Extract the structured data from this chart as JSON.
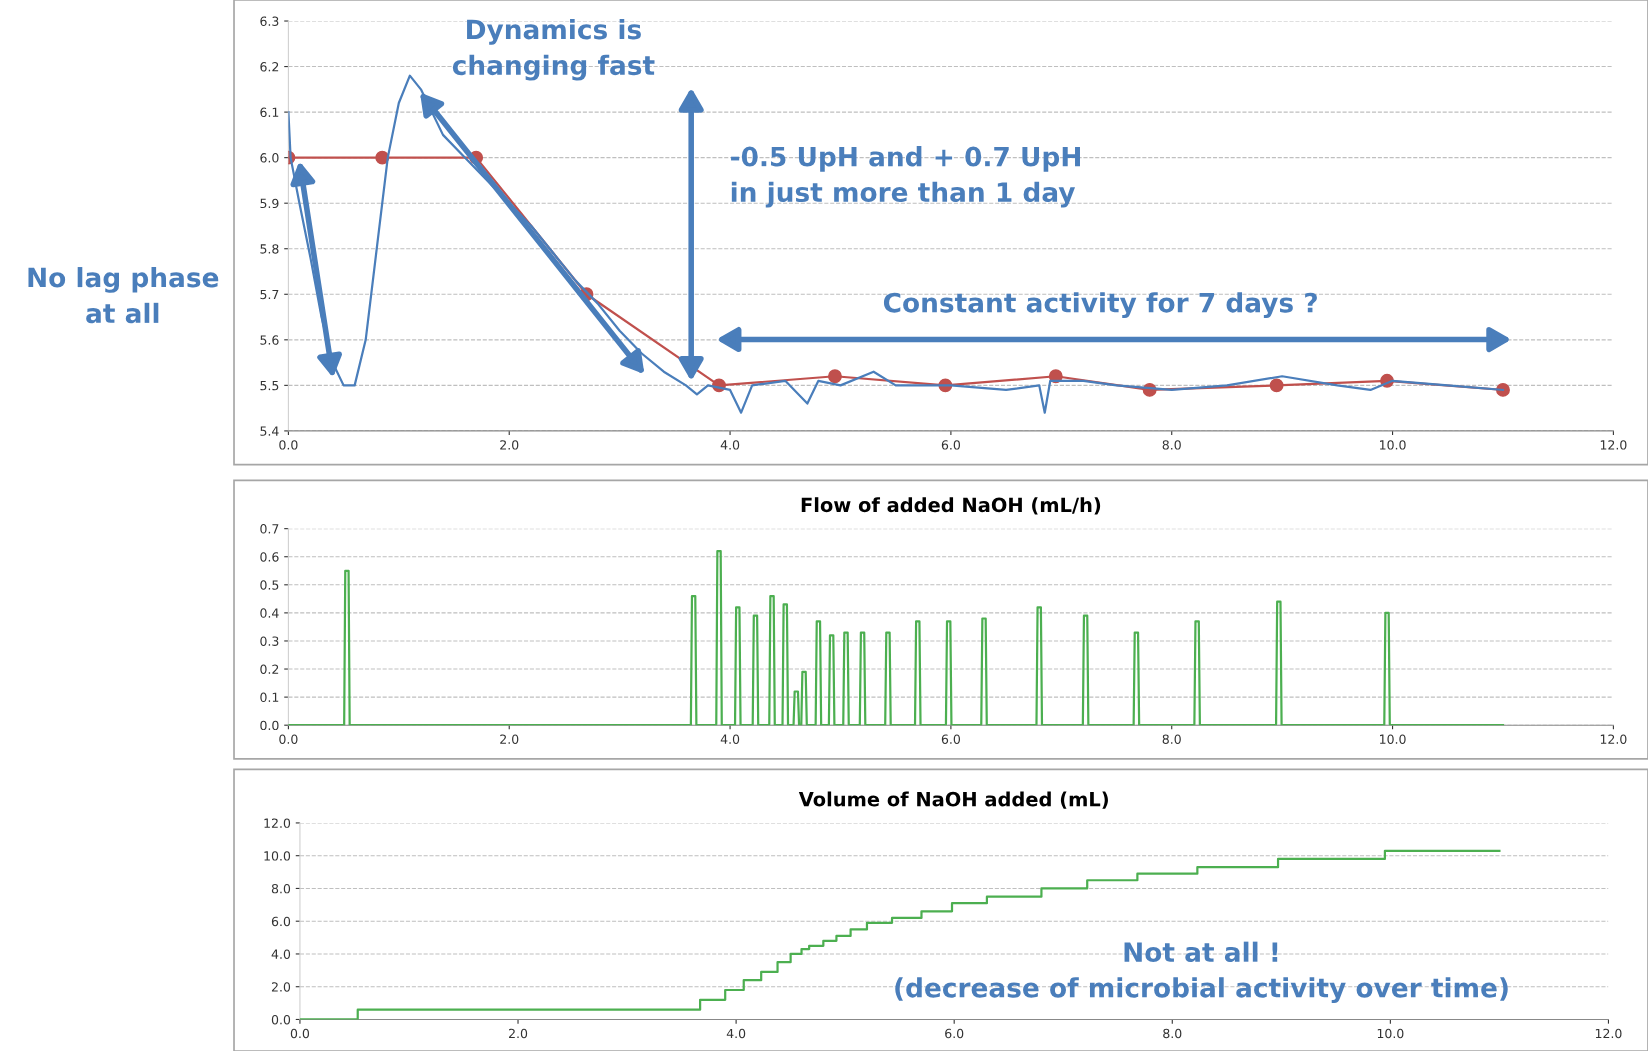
{
  "chart_data": [
    {
      "type": "line",
      "xlim": [
        0,
        12
      ],
      "ylim": [
        5.4,
        6.3
      ],
      "grid": "y",
      "xticks": [
        {
          "value": 0,
          "label": "0.0"
        },
        {
          "value": 2,
          "label": "2.0"
        },
        {
          "value": 4,
          "label": "4.0"
        },
        {
          "value": 6,
          "label": "6.0"
        },
        {
          "value": 8,
          "label": "8.0"
        },
        {
          "value": 10,
          "label": "10.0"
        },
        {
          "value": 12,
          "label": "12.0"
        }
      ],
      "yticks": [
        5.4,
        5.5,
        5.6,
        5.7,
        5.8,
        5.9,
        {
          "value": 6,
          "label": "6.0"
        },
        6.1,
        6.2,
        6.3
      ],
      "series": [
        {
          "color": "#4a7ebb",
          "marker": "none",
          "x": [
            0,
            0.02,
            0.1,
            0.2,
            0.3,
            0.4,
            0.5,
            0.6,
            0.7,
            0.8,
            0.9,
            1.0,
            1.1,
            1.2,
            1.4,
            1.6,
            1.8,
            2.0,
            2.2,
            2.4,
            2.6,
            2.8,
            3.0,
            3.2,
            3.4,
            3.6,
            3.7,
            3.8,
            4.0,
            4.1,
            4.2,
            4.5,
            4.7,
            4.8,
            5.0,
            5.3,
            5.5,
            6.0,
            6.5,
            6.8,
            6.85,
            6.9,
            7.2,
            7.5,
            8.0,
            8.5,
            9.0,
            9.5,
            9.8,
            10.0,
            10.5,
            11.0
          ],
          "values": [
            6.1,
            6.0,
            5.9,
            5.78,
            5.65,
            5.55,
            5.5,
            5.5,
            5.6,
            5.8,
            6.0,
            6.12,
            6.18,
            6.15,
            6.05,
            6.0,
            5.95,
            5.9,
            5.85,
            5.79,
            5.73,
            5.68,
            5.62,
            5.57,
            5.53,
            5.5,
            5.48,
            5.5,
            5.49,
            5.44,
            5.5,
            5.51,
            5.46,
            5.51,
            5.5,
            5.53,
            5.5,
            5.5,
            5.49,
            5.5,
            5.44,
            5.51,
            5.51,
            5.5,
            5.49,
            5.5,
            5.52,
            5.5,
            5.49,
            5.51,
            5.5,
            5.49
          ]
        },
        {
          "color": "#c0504d",
          "marker": "circle",
          "x": [
            0,
            0.85,
            1.7,
            2.7,
            3.9,
            4.95,
            5.95,
            6.95,
            7.8,
            8.95,
            9.95,
            11.0
          ],
          "values": [
            6.0,
            6.0,
            6.0,
            5.7,
            5.5,
            5.52,
            5.5,
            5.52,
            5.49,
            5.5,
            5.51,
            5.49
          ]
        }
      ],
      "annotations": [
        "No lag phase\nat all",
        "Dynamics is\nchanging fast",
        "-0.5 UpH and + 0.7 UpH\nin just more than 1 day",
        "Constant activity for 7 days ?"
      ]
    },
    {
      "type": "line",
      "title": "Flow of added NaOH (mL/h)",
      "xlim": [
        0,
        12
      ],
      "ylim": [
        0,
        0.7
      ],
      "grid": "y",
      "xticks": [
        {
          "value": 0,
          "label": "0.0"
        },
        {
          "value": 2,
          "label": "2.0"
        },
        {
          "value": 4,
          "label": "4.0"
        },
        {
          "value": 6,
          "label": "6.0"
        },
        {
          "value": 8,
          "label": "8.0"
        },
        {
          "value": 10,
          "label": "10.0"
        },
        {
          "value": 12,
          "label": "12.0"
        }
      ],
      "yticks": [
        {
          "value": 0,
          "label": "0.0"
        },
        0.1,
        0.2,
        0.3,
        0.4,
        0.5,
        0.6,
        0.7
      ],
      "series": [
        {
          "color": "#4caf50",
          "x": [
            0,
            0.505,
            0.515,
            0.545,
            0.555,
            3.645,
            3.655,
            3.685,
            3.695,
            3.875,
            3.885,
            3.915,
            3.925,
            4.045,
            4.055,
            4.085,
            4.095,
            4.205,
            4.215,
            4.245,
            4.255,
            4.355,
            4.365,
            4.395,
            4.405,
            4.475,
            4.485,
            4.515,
            4.525,
            4.575,
            4.585,
            4.615,
            4.625,
            4.645,
            4.655,
            4.685,
            4.695,
            4.775,
            4.785,
            4.815,
            4.825,
            4.895,
            4.905,
            4.935,
            4.945,
            5.025,
            5.035,
            5.065,
            5.075,
            5.175,
            5.185,
            5.215,
            5.225,
            5.405,
            5.415,
            5.445,
            5.455,
            5.675,
            5.685,
            5.715,
            5.725,
            5.955,
            5.965,
            5.995,
            6.005,
            6.275,
            6.285,
            6.315,
            6.325,
            6.775,
            6.785,
            6.815,
            6.825,
            7.195,
            7.205,
            7.235,
            7.245,
            7.655,
            7.665,
            7.695,
            7.705,
            8.205,
            8.215,
            8.245,
            8.255,
            8.945,
            8.955,
            8.985,
            8.995,
            9.925,
            9.935,
            9.965,
            9.975,
            11.0
          ],
          "values": [
            0,
            0,
            0.55,
            0.55,
            0,
            0,
            0.46,
            0.46,
            0,
            0,
            0.62,
            0.62,
            0,
            0,
            0.42,
            0.42,
            0,
            0,
            0.39,
            0.39,
            0,
            0,
            0.46,
            0.46,
            0,
            0,
            0.43,
            0.43,
            0,
            0,
            0.12,
            0.12,
            0,
            0,
            0.19,
            0.19,
            0,
            0,
            0.37,
            0.37,
            0,
            0,
            0.32,
            0.32,
            0,
            0,
            0.33,
            0.33,
            0,
            0,
            0.33,
            0.33,
            0,
            0,
            0.33,
            0.33,
            0,
            0,
            0.37,
            0.37,
            0,
            0,
            0.37,
            0.37,
            0,
            0,
            0.38,
            0.38,
            0,
            0,
            0.42,
            0.42,
            0,
            0,
            0.39,
            0.39,
            0,
            0,
            0.33,
            0.33,
            0,
            0,
            0.37,
            0.37,
            0,
            0,
            0.44,
            0.44,
            0,
            0,
            0.4,
            0.4,
            0,
            0
          ]
        }
      ]
    },
    {
      "type": "step",
      "title": "Volume of NaOH added (mL)",
      "xlim": [
        0,
        12
      ],
      "ylim": [
        0,
        12
      ],
      "grid": "y",
      "xticks": [
        {
          "value": 0,
          "label": "0.0"
        },
        {
          "value": 2,
          "label": "2.0"
        },
        {
          "value": 4,
          "label": "4.0"
        },
        {
          "value": 6,
          "label": "6.0"
        },
        {
          "value": 8,
          "label": "8.0"
        },
        {
          "value": 10,
          "label": "10.0"
        },
        {
          "value": 12,
          "label": "12.0"
        }
      ],
      "yticks": [
        {
          "value": 0,
          "label": "0.0"
        },
        {
          "value": 2,
          "label": "2.0"
        },
        {
          "value": 4,
          "label": "4.0"
        },
        {
          "value": 6,
          "label": "6.0"
        },
        {
          "value": 8,
          "label": "8.0"
        },
        {
          "value": 10,
          "label": "10.0"
        },
        {
          "value": 12,
          "label": "12.0"
        }
      ],
      "series": [
        {
          "color": "#4caf50",
          "x": [
            0,
            0.53,
            3.67,
            3.9,
            4.07,
            4.23,
            4.38,
            4.5,
            4.6,
            4.67,
            4.8,
            4.92,
            5.05,
            5.2,
            5.43,
            5.7,
            5.98,
            6.3,
            6.8,
            7.22,
            7.68,
            8.23,
            8.97,
            9.95,
            11.0
          ],
          "values": [
            0,
            0.6,
            1.2,
            1.8,
            2.4,
            2.9,
            3.5,
            4.0,
            4.3,
            4.5,
            4.8,
            5.1,
            5.5,
            5.9,
            6.2,
            6.6,
            7.1,
            7.5,
            8.0,
            8.5,
            8.9,
            9.3,
            9.8,
            10.3,
            10.3
          ]
        }
      ],
      "annotations": [
        "Not at all !\n(decrease of microbial activity over time)"
      ]
    }
  ]
}
